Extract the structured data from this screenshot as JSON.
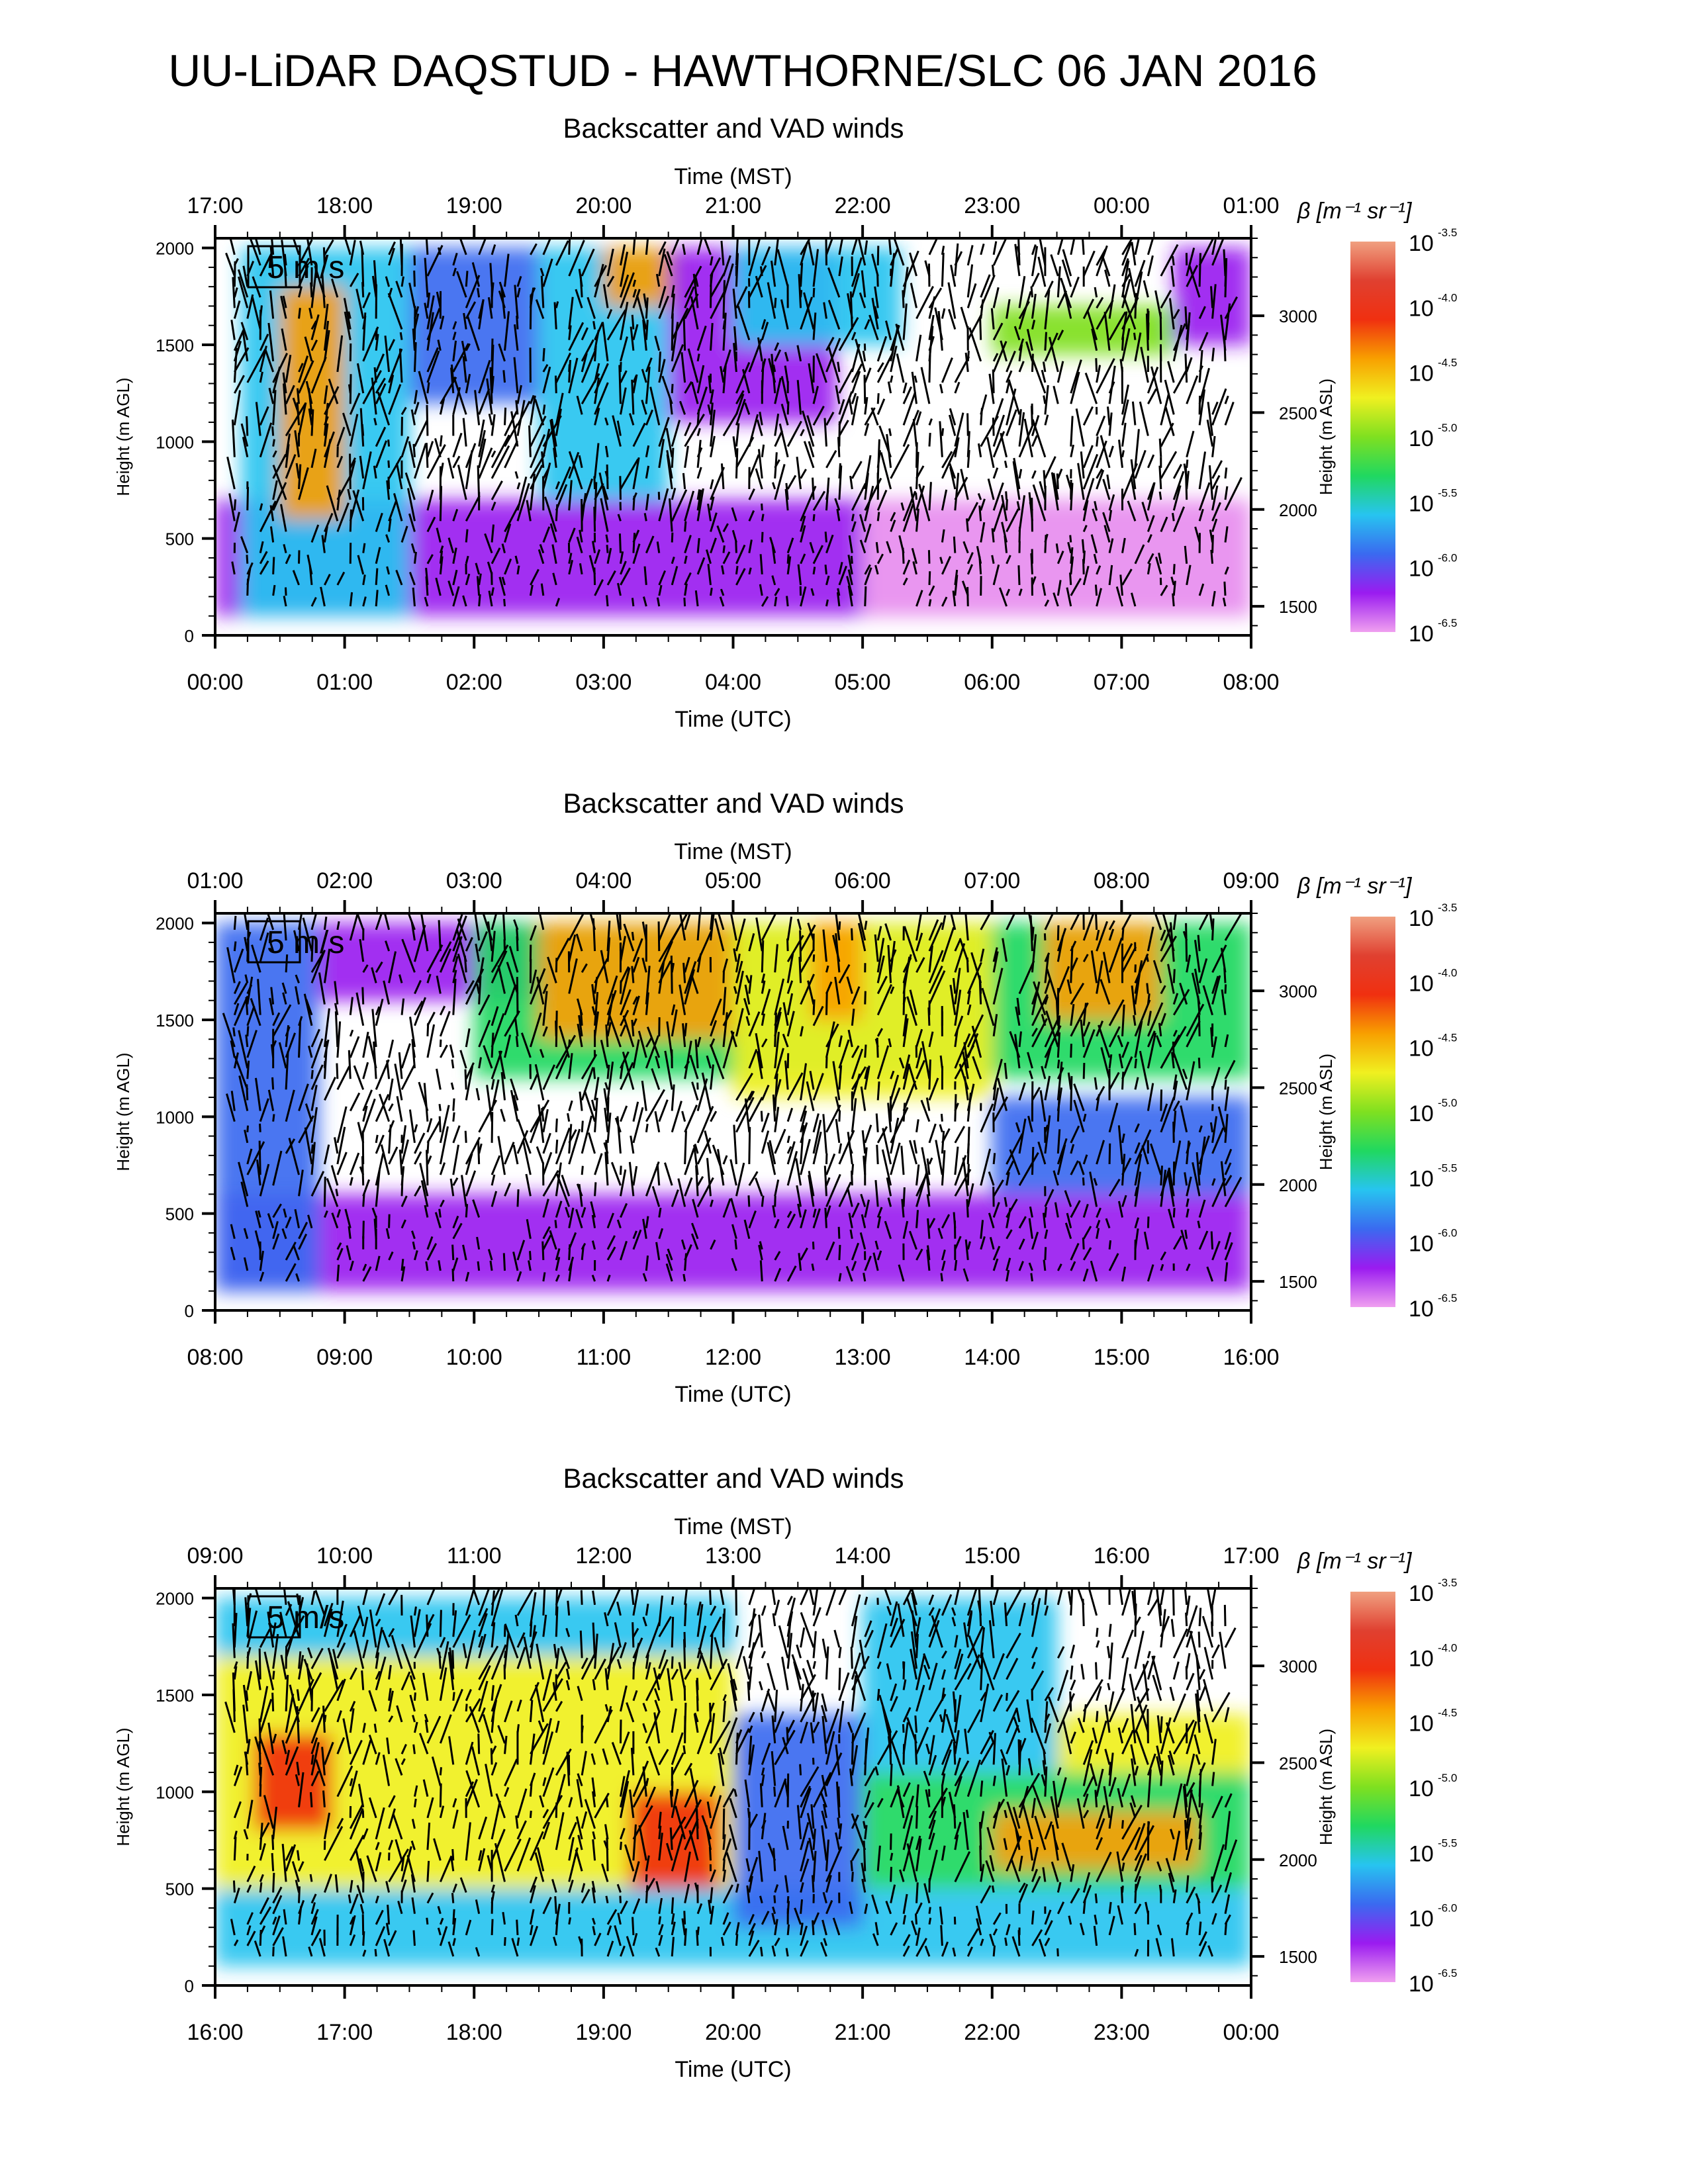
{
  "title": "UU-LiDAR DAQSTUD - HAWTHORNE/SLC 06 JAN 2016",
  "panel_title": "Backscatter and VAD winds",
  "top_axis_label": "Time (MST)",
  "bottom_axis_label": "Time (UTC)",
  "left_axis_label": "Height (m AGL)",
  "right_axis_label": "Height (m ASL)",
  "colorbar_label": "β [m⁻¹ sr⁻¹]",
  "wind_reference_label": "5 m/s",
  "colors": {
    "arrow": "#000000",
    "no_data": "#ffffff",
    "colormap": [
      "#f0a0f0",
      "#9a1bf0",
      "#3a6af0",
      "#27c4f0",
      "#20d860",
      "#7fe020",
      "#f0f020",
      "#f8a000",
      "#f03010",
      "#e04030",
      "#f0a080"
    ]
  },
  "chart_data": [
    {
      "type": "heatmap",
      "title": "Backscatter and VAD winds",
      "xlabel": "Time (UTC)",
      "x2label": "Time (MST)",
      "ylabel": "Height (m AGL)",
      "y2label": "Height (m ASL)",
      "x_ticks": [
        "00:00",
        "01:00",
        "02:00",
        "03:00",
        "04:00",
        "05:00",
        "06:00",
        "07:00",
        "08:00"
      ],
      "x2_ticks": [
        "17:00",
        "18:00",
        "19:00",
        "20:00",
        "21:00",
        "22:00",
        "23:00",
        "00:00",
        "01:00"
      ],
      "x_range_hours_utc": [
        0,
        8
      ],
      "y_ticks": [
        0,
        500,
        1000,
        1500,
        2000
      ],
      "y2_ticks": [
        1500,
        2000,
        2500,
        3000
      ],
      "ylim": [
        0,
        2050
      ],
      "colorbar": {
        "label": "β [m⁻¹ sr⁻¹]",
        "log10_ticks": [
          -3.5,
          -4.0,
          -4.5,
          -5.0,
          -5.5,
          -6.0,
          -6.5
        ],
        "scale": "log"
      },
      "wind_reference": "5 m/s",
      "regions": [
        {
          "t0": 0.0,
          "t1": 8.0,
          "h0": 100,
          "h1": 700,
          "log_beta": -6.2
        },
        {
          "t0": 0.2,
          "t1": 1.5,
          "h0": 100,
          "h1": 2000,
          "log_beta": -5.7
        },
        {
          "t0": 0.5,
          "t1": 1.0,
          "h0": 600,
          "h1": 1800,
          "log_beta": -4.5
        },
        {
          "t0": 1.5,
          "t1": 2.5,
          "h0": 1200,
          "h1": 2000,
          "log_beta": -5.9
        },
        {
          "t0": 2.5,
          "t1": 3.5,
          "h0": 700,
          "h1": 2000,
          "log_beta": -5.6
        },
        {
          "t0": 3.0,
          "t1": 3.6,
          "h0": 1700,
          "h1": 2000,
          "log_beta": -4.4
        },
        {
          "t0": 3.5,
          "t1": 4.8,
          "h0": 1100,
          "h1": 2000,
          "log_beta": -6.1
        },
        {
          "t0": 4.0,
          "t1": 5.3,
          "h0": 1500,
          "h1": 2000,
          "log_beta": -5.5
        },
        {
          "t0": 5.0,
          "t1": 8.0,
          "h0": 100,
          "h1": 700,
          "log_beta": -6.4
        },
        {
          "t0": 6.0,
          "t1": 7.4,
          "h0": 1450,
          "h1": 1700,
          "log_beta": -4.9
        },
        {
          "t0": 7.4,
          "t1": 8.0,
          "h0": 1500,
          "h1": 2000,
          "log_beta": -6.3
        }
      ]
    },
    {
      "type": "heatmap",
      "title": "Backscatter and VAD winds",
      "xlabel": "Time (UTC)",
      "x2label": "Time (MST)",
      "ylabel": "Height (m AGL)",
      "y2label": "Height (m ASL)",
      "x_ticks": [
        "08:00",
        "09:00",
        "10:00",
        "11:00",
        "12:00",
        "13:00",
        "14:00",
        "15:00",
        "16:00"
      ],
      "x2_ticks": [
        "01:00",
        "02:00",
        "03:00",
        "04:00",
        "05:00",
        "06:00",
        "07:00",
        "08:00",
        "09:00"
      ],
      "x_range_hours_utc": [
        8,
        16
      ],
      "y_ticks": [
        0,
        500,
        1000,
        1500,
        2000
      ],
      "y2_ticks": [
        1500,
        2000,
        2500,
        3000
      ],
      "ylim": [
        0,
        2050
      ],
      "colorbar": {
        "label": "β [m⁻¹ sr⁻¹]",
        "log10_ticks": [
          -3.5,
          -4.0,
          -4.5,
          -5.0,
          -5.5,
          -6.0,
          -6.5
        ],
        "scale": "log"
      },
      "wind_reference": "5 m/s",
      "regions": [
        {
          "t0": 8.0,
          "t1": 16.0,
          "h0": 100,
          "h1": 600,
          "log_beta": -6.2
        },
        {
          "t0": 8.0,
          "t1": 8.8,
          "h0": 100,
          "h1": 2000,
          "log_beta": -5.8
        },
        {
          "t0": 8.8,
          "t1": 10.8,
          "h0": 1600,
          "h1": 2000,
          "log_beta": -6.1
        },
        {
          "t0": 10.0,
          "t1": 16.0,
          "h0": 1200,
          "h1": 2000,
          "log_beta": -5.3
        },
        {
          "t0": 10.5,
          "t1": 12.0,
          "h0": 1400,
          "h1": 2000,
          "log_beta": -4.5
        },
        {
          "t0": 12.0,
          "t1": 14.0,
          "h0": 1100,
          "h1": 2000,
          "log_beta": -4.8
        },
        {
          "t0": 12.6,
          "t1": 13.0,
          "h0": 1500,
          "h1": 2000,
          "log_beta": -4.3
        },
        {
          "t0": 14.4,
          "t1": 15.3,
          "h0": 1500,
          "h1": 2000,
          "log_beta": -4.3
        },
        {
          "t0": 14.0,
          "t1": 16.0,
          "h0": 600,
          "h1": 1100,
          "log_beta": -6.0
        }
      ]
    },
    {
      "type": "heatmap",
      "title": "Backscatter and VAD winds",
      "xlabel": "Time (UTC)",
      "x2label": "Time (MST)",
      "ylabel": "Height (m AGL)",
      "y2label": "Height (m ASL)",
      "x_ticks": [
        "16:00",
        "17:00",
        "18:00",
        "19:00",
        "20:00",
        "21:00",
        "22:00",
        "23:00",
        "00:00"
      ],
      "x2_ticks": [
        "09:00",
        "10:00",
        "11:00",
        "12:00",
        "13:00",
        "14:00",
        "15:00",
        "16:00",
        "17:00"
      ],
      "x_range_hours_utc": [
        16,
        24
      ],
      "y_ticks": [
        0,
        500,
        1000,
        1500,
        2000
      ],
      "y2_ticks": [
        1500,
        2000,
        2500,
        3000
      ],
      "ylim": [
        0,
        2050
      ],
      "colorbar": {
        "label": "β [m⁻¹ sr⁻¹]",
        "log10_ticks": [
          -3.5,
          -4.0,
          -4.5,
          -5.0,
          -5.5,
          -6.0,
          -6.5
        ],
        "scale": "log"
      },
      "wind_reference": "5 m/s",
      "regions": [
        {
          "t0": 16.0,
          "t1": 24.0,
          "h0": 100,
          "h1": 500,
          "log_beta": -5.5
        },
        {
          "t0": 16.0,
          "t1": 20.0,
          "h0": 500,
          "h1": 1700,
          "log_beta": -4.7
        },
        {
          "t0": 16.3,
          "t1": 16.9,
          "h0": 800,
          "h1": 1300,
          "log_beta": -4.1
        },
        {
          "t0": 19.2,
          "t1": 19.9,
          "h0": 500,
          "h1": 1000,
          "log_beta": -4.2
        },
        {
          "t0": 16.0,
          "t1": 20.0,
          "h0": 1700,
          "h1": 2000,
          "log_beta": -5.6
        },
        {
          "t0": 20.0,
          "t1": 21.0,
          "h0": 300,
          "h1": 1400,
          "log_beta": -5.8
        },
        {
          "t0": 21.0,
          "t1": 24.0,
          "h0": 500,
          "h1": 1100,
          "log_beta": -5.3
        },
        {
          "t0": 21.0,
          "t1": 22.5,
          "h0": 1100,
          "h1": 2000,
          "log_beta": -5.7
        },
        {
          "t0": 22.0,
          "t1": 23.6,
          "h0": 600,
          "h1": 900,
          "log_beta": -4.4
        },
        {
          "t0": 22.5,
          "t1": 24.0,
          "h0": 1100,
          "h1": 1400,
          "log_beta": -4.6
        }
      ]
    }
  ]
}
